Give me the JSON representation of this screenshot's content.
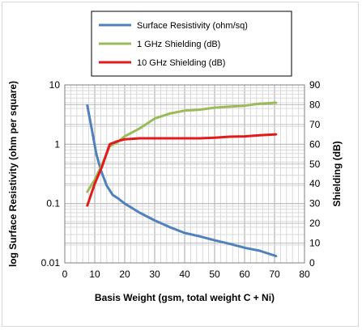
{
  "chart_data": {
    "type": "line",
    "xlabel": "Basis Weight (gsm, total weight C + Ni)",
    "ylabel_left": "log Surface Resistivity (ohm per square)",
    "ylabel_right": "Shielding (dB)",
    "x_range": [
      0,
      80
    ],
    "x_ticks": [
      "0",
      "10",
      "20",
      "30",
      "40",
      "50",
      "60",
      "70",
      "80"
    ],
    "y_left_range": [
      0.01,
      10
    ],
    "y_left_scale": "log",
    "y_left_ticks": [
      "0.01",
      "0.1",
      "1",
      "10"
    ],
    "y_right_range": [
      0,
      90
    ],
    "y_right_ticks": [
      "0",
      "10",
      "20",
      "30",
      "40",
      "50",
      "60",
      "70",
      "80",
      "90"
    ],
    "grid": true,
    "legend_position": "top-center",
    "series": [
      {
        "name": "Surface Resistivity (ohm/sq)",
        "axis": "left",
        "color": "#4f81bd",
        "x": [
          7.5,
          9,
          10.5,
          12,
          14,
          16,
          18,
          20,
          25,
          30,
          35,
          40,
          45,
          50,
          55,
          60,
          65,
          70.5
        ],
        "y": [
          4.5,
          1.8,
          0.7,
          0.37,
          0.2,
          0.14,
          0.12,
          0.1,
          0.07,
          0.052,
          0.04,
          0.032,
          0.028,
          0.024,
          0.021,
          0.018,
          0.016,
          0.013
        ]
      },
      {
        "name": "1 GHz Shielding (dB)",
        "axis": "right",
        "color": "#9bbb59",
        "x": [
          7.5,
          10,
          12.5,
          15,
          17.5,
          20,
          25,
          30,
          35,
          40,
          45,
          50,
          55,
          60,
          65,
          70.5
        ],
        "y": [
          36,
          42,
          50,
          59,
          61,
          64,
          68,
          73,
          75.5,
          77,
          77.5,
          78.5,
          79,
          79.5,
          80.5,
          81
        ]
      },
      {
        "name": "10 GHz Shielding (dB)",
        "axis": "right",
        "color": "#e31a1c",
        "x": [
          7.5,
          10,
          12.5,
          15,
          17.5,
          20,
          25,
          30,
          35,
          40,
          45,
          50,
          55,
          60,
          65,
          70.5
        ],
        "y": [
          29,
          40,
          49,
          60,
          61.5,
          62.5,
          63,
          63,
          63,
          63,
          63,
          63.3,
          63.8,
          64,
          64.5,
          65
        ]
      }
    ]
  }
}
